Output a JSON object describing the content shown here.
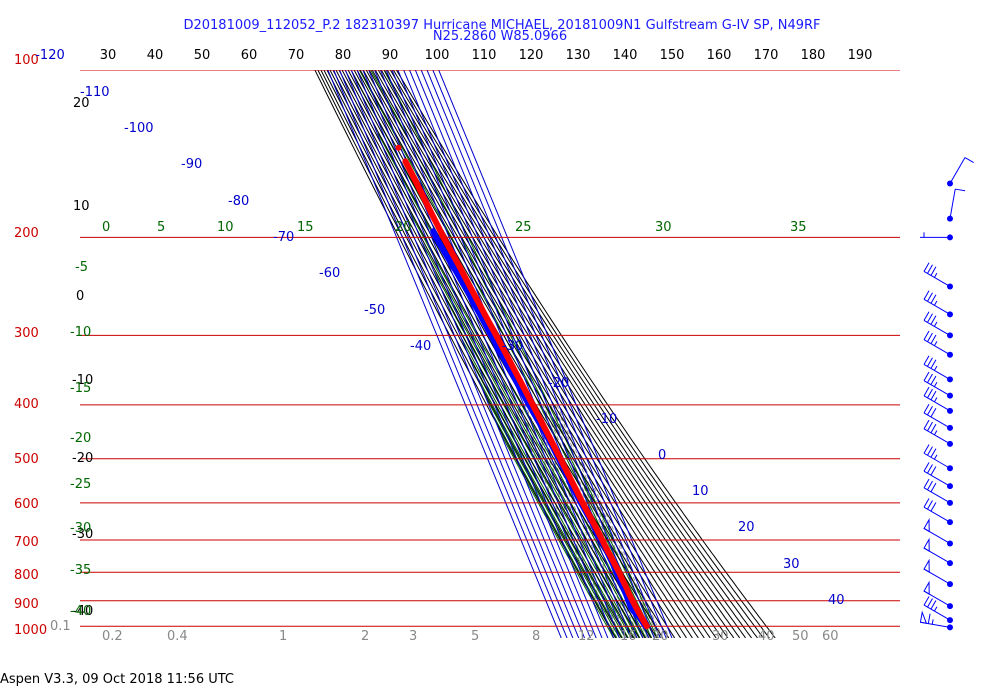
{
  "chart_data": {
    "type": "line",
    "title": "D20181009_112052_P.2 182310397 Hurricane MICHAEL, 20181009N1 Gulfstream G-IV SP, N49RF",
    "subtitle": "N25.2860 W85.0966",
    "footer": "Aspen V3.3, 09 Oct 2018  11:56 UTC",
    "colors": {
      "temperature": "#ff0000",
      "dewpoint": "#0000ff",
      "isobar": "#cc0000",
      "isotherm": "#0000cc",
      "dry_adiabat": "#000000",
      "moist_adiabat": "#006600",
      "mixing_ratio": "#888888",
      "title": "#1a1aff"
    },
    "pressure_levels_hPa": [
      "100",
      "200",
      "300",
      "400",
      "500",
      "600",
      "700",
      "800",
      "900",
      "1000"
    ],
    "top_axis_labels": [
      "-120",
      "30",
      "40",
      "50",
      "60",
      "70",
      "80",
      "90",
      "100",
      "110",
      "120",
      "130",
      "140",
      "150",
      "160",
      "170",
      "180",
      "190"
    ],
    "isotherm_labels": [
      "-110",
      "-100",
      "-90",
      "-80",
      "-70",
      "-60",
      "-50",
      "-40",
      "-30",
      "-20",
      "-10",
      "0",
      "10",
      "20",
      "30",
      "40"
    ],
    "dry_adiabat_labels": [
      "20",
      "10",
      "0",
      "-10",
      "-20",
      "-30",
      "-40"
    ],
    "moist_adiabat_labels": [
      "0",
      "5",
      "10",
      "15",
      "20",
      "25",
      "30",
      "35",
      "-5",
      "-10",
      "-15",
      "-20",
      "-25",
      "-30",
      "-35",
      "-40"
    ],
    "mixing_ratio_labels": [
      "0.1",
      "0.2",
      "0.4",
      "1",
      "2",
      "3",
      "5",
      "8",
      "12",
      "16",
      "20",
      "30",
      "40",
      "50",
      "60"
    ],
    "temperature_profile": [
      {
        "p": 1000,
        "t": 25.0
      },
      {
        "p": 990,
        "t": 24.2
      },
      {
        "p": 975,
        "t": 23.0
      },
      {
        "p": 950,
        "t": 21.5
      },
      {
        "p": 925,
        "t": 20.0
      },
      {
        "p": 900,
        "t": 18.5
      },
      {
        "p": 875,
        "t": 17.5
      },
      {
        "p": 850,
        "t": 17.2
      },
      {
        "p": 825,
        "t": 16.0
      },
      {
        "p": 800,
        "t": 15.5
      },
      {
        "p": 775,
        "t": 13.8
      },
      {
        "p": 750,
        "t": 12.5
      },
      {
        "p": 725,
        "t": 10.5
      },
      {
        "p": 700,
        "t": 9.5
      },
      {
        "p": 675,
        "t": 8.0
      },
      {
        "p": 650,
        "t": 6.2
      },
      {
        "p": 625,
        "t": 4.0
      },
      {
        "p": 600,
        "t": 2.0
      },
      {
        "p": 575,
        "t": 0.5
      },
      {
        "p": 550,
        "t": -1.5
      },
      {
        "p": 525,
        "t": -3.2
      },
      {
        "p": 500,
        "t": -5.0
      },
      {
        "p": 475,
        "t": -7.2
      },
      {
        "p": 450,
        "t": -9.5
      },
      {
        "p": 425,
        "t": -12.0
      },
      {
        "p": 400,
        "t": -14.5
      },
      {
        "p": 375,
        "t": -17.5
      },
      {
        "p": 350,
        "t": -21.0
      },
      {
        "p": 325,
        "t": -24.5
      },
      {
        "p": 300,
        "t": -28.5
      },
      {
        "p": 275,
        "t": -33.0
      },
      {
        "p": 250,
        "t": -38.0
      },
      {
        "p": 225,
        "t": -43.0
      },
      {
        "p": 210,
        "t": -46.8
      },
      {
        "p": 200,
        "t": -49.5
      },
      {
        "p": 190,
        "t": -51.5
      },
      {
        "p": 180,
        "t": -53.5
      },
      {
        "p": 170,
        "t": -55.5
      },
      {
        "p": 160,
        "t": -57.5
      },
      {
        "p": 155,
        "t": -58.8
      },
      {
        "p": 150,
        "t": -60.2
      },
      {
        "p": 146,
        "t": -61.5
      }
    ],
    "dewpoint_profile": [
      {
        "p": 1000,
        "t": 22.5
      },
      {
        "p": 990,
        "t": 22.0
      },
      {
        "p": 975,
        "t": 20.0
      },
      {
        "p": 960,
        "t": 18.0
      },
      {
        "p": 950,
        "t": 15.5
      },
      {
        "p": 940,
        "t": 13.0
      },
      {
        "p": 925,
        "t": 11.0
      },
      {
        "p": 900,
        "t": 11.5
      },
      {
        "p": 875,
        "t": 12.0
      },
      {
        "p": 850,
        "t": 11.5
      },
      {
        "p": 825,
        "t": 11.0
      },
      {
        "p": 800,
        "t": 10.5
      },
      {
        "p": 775,
        "t": 10.8
      },
      {
        "p": 750,
        "t": 10.0
      },
      {
        "p": 725,
        "t": 9.0
      },
      {
        "p": 700,
        "t": 7.5
      },
      {
        "p": 675,
        "t": 5.5
      },
      {
        "p": 650,
        "t": 4.0
      },
      {
        "p": 625,
        "t": 1.5
      },
      {
        "p": 600,
        "t": -1.0
      },
      {
        "p": 575,
        "t": -3.0
      },
      {
        "p": 550,
        "t": -4.5
      },
      {
        "p": 525,
        "t": -6.0
      },
      {
        "p": 500,
        "t": -8.0
      },
      {
        "p": 475,
        "t": -10.0
      },
      {
        "p": 450,
        "t": -13.0
      },
      {
        "p": 425,
        "t": -17.0
      },
      {
        "p": 400,
        "t": -21.0
      },
      {
        "p": 375,
        "t": -24.5
      },
      {
        "p": 350,
        "t": -28.5
      },
      {
        "p": 325,
        "t": -32.5
      },
      {
        "p": 300,
        "t": -37.0
      },
      {
        "p": 275,
        "t": -41.5
      },
      {
        "p": 250,
        "t": -46.5
      },
      {
        "p": 230,
        "t": -52.0
      },
      {
        "p": 215,
        "t": -57.5
      },
      {
        "p": 205,
        "t": -61.0
      },
      {
        "p": 200,
        "t": -62.5
      },
      {
        "p": 195,
        "t": -63.0
      }
    ],
    "wind_barbs": [
      {
        "p": 160,
        "kt": 10,
        "dir": 30
      },
      {
        "p": 185,
        "kt": 10,
        "dir": 10
      },
      {
        "p": 200,
        "kt": 5,
        "dir": 270
      },
      {
        "p": 245,
        "kt": 35,
        "dir": 300
      },
      {
        "p": 275,
        "kt": 35,
        "dir": 300
      },
      {
        "p": 300,
        "kt": 35,
        "dir": 300
      },
      {
        "p": 325,
        "kt": 35,
        "dir": 300
      },
      {
        "p": 360,
        "kt": 35,
        "dir": 300
      },
      {
        "p": 385,
        "kt": 35,
        "dir": 300
      },
      {
        "p": 410,
        "kt": 35,
        "dir": 300
      },
      {
        "p": 440,
        "kt": 30,
        "dir": 300
      },
      {
        "p": 470,
        "kt": 35,
        "dir": 300
      },
      {
        "p": 520,
        "kt": 35,
        "dir": 300
      },
      {
        "p": 560,
        "kt": 30,
        "dir": 300
      },
      {
        "p": 600,
        "kt": 30,
        "dir": 300
      },
      {
        "p": 650,
        "kt": 30,
        "dir": 300
      },
      {
        "p": 710,
        "kt": 50,
        "dir": 300
      },
      {
        "p": 770,
        "kt": 50,
        "dir": 300
      },
      {
        "p": 840,
        "kt": 50,
        "dir": 300
      },
      {
        "p": 920,
        "kt": 50,
        "dir": 300
      },
      {
        "p": 975,
        "kt": 35,
        "dir": 300
      },
      {
        "p": 1005,
        "kt": 65,
        "dir": 280
      }
    ]
  }
}
